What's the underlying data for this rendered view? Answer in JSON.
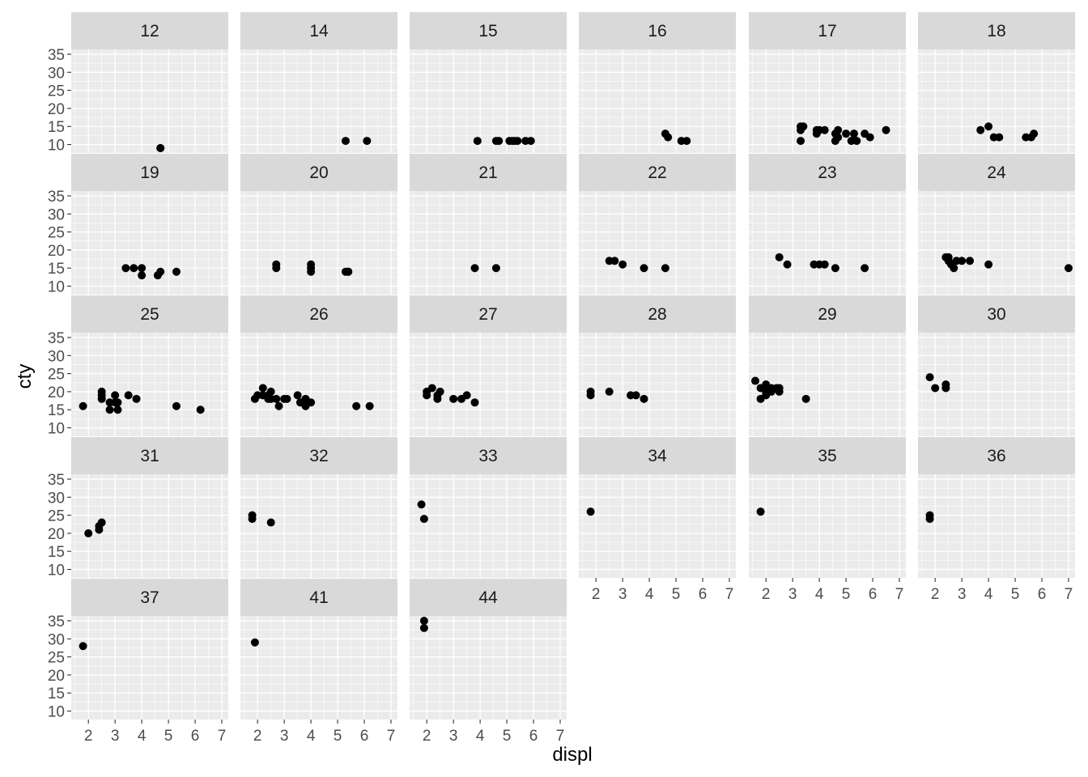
{
  "chart_data": {
    "type": "scatter",
    "facet_by": "hwy",
    "xlabel": "displ",
    "ylabel": "cty",
    "xlim": [
      1.6,
      7.0
    ],
    "ylim": [
      9,
      35
    ],
    "x_ticks": [
      2,
      3,
      4,
      5,
      6,
      7
    ],
    "y_ticks": [
      10,
      15,
      20,
      25,
      30,
      35
    ],
    "grid": true,
    "point_color": "#000000",
    "panel_background": "#ebebeb",
    "strip_background": "#d9d9d9",
    "panels": [
      {
        "label": "12",
        "points": [
          [
            4.7,
            9
          ],
          [
            4.7,
            9
          ]
        ]
      },
      {
        "label": "14",
        "points": [
          [
            5.3,
            11
          ],
          [
            6.1,
            11
          ]
        ]
      },
      {
        "label": "15",
        "points": [
          [
            3.9,
            11
          ],
          [
            4.6,
            11
          ],
          [
            4.7,
            11
          ],
          [
            5.1,
            11
          ],
          [
            5.2,
            11
          ],
          [
            5.3,
            11
          ],
          [
            5.4,
            11
          ],
          [
            5.7,
            11
          ],
          [
            5.9,
            11
          ]
        ]
      },
      {
        "label": "16",
        "points": [
          [
            4.6,
            13
          ],
          [
            4.7,
            12
          ],
          [
            5.2,
            11
          ],
          [
            5.4,
            11
          ]
        ]
      },
      {
        "label": "17",
        "points": [
          [
            3.3,
            11
          ],
          [
            3.3,
            14
          ],
          [
            3.3,
            15
          ],
          [
            3.4,
            15
          ],
          [
            3.9,
            13
          ],
          [
            3.9,
            14
          ],
          [
            4.0,
            14
          ],
          [
            4.2,
            14
          ],
          [
            4.6,
            11
          ],
          [
            4.6,
            13
          ],
          [
            4.7,
            14
          ],
          [
            4.7,
            12
          ],
          [
            5.0,
            13
          ],
          [
            5.2,
            11
          ],
          [
            5.3,
            13
          ],
          [
            5.4,
            11
          ],
          [
            5.7,
            13
          ],
          [
            5.9,
            12
          ],
          [
            6.5,
            14
          ]
        ]
      },
      {
        "label": "18",
        "points": [
          [
            3.7,
            14
          ],
          [
            4.0,
            15
          ],
          [
            4.2,
            12
          ],
          [
            4.4,
            12
          ],
          [
            5.4,
            12
          ],
          [
            5.6,
            12
          ],
          [
            5.7,
            13
          ]
        ]
      },
      {
        "label": "19",
        "points": [
          [
            3.4,
            15
          ],
          [
            3.7,
            15
          ],
          [
            4.0,
            13
          ],
          [
            4.0,
            15
          ],
          [
            4.6,
            13
          ],
          [
            4.7,
            14
          ],
          [
            5.3,
            14
          ]
        ]
      },
      {
        "label": "20",
        "points": [
          [
            2.7,
            15
          ],
          [
            2.7,
            16
          ],
          [
            4.0,
            14
          ],
          [
            4.0,
            15
          ],
          [
            4.0,
            16
          ],
          [
            5.3,
            14
          ],
          [
            5.4,
            14
          ],
          [
            5.4,
            14
          ]
        ]
      },
      {
        "label": "21",
        "points": [
          [
            3.8,
            15
          ],
          [
            4.6,
            15
          ]
        ]
      },
      {
        "label": "22",
        "points": [
          [
            2.5,
            17
          ],
          [
            2.7,
            17
          ],
          [
            3.0,
            16
          ],
          [
            3.8,
            15
          ],
          [
            4.6,
            15
          ]
        ]
      },
      {
        "label": "23",
        "points": [
          [
            2.5,
            18
          ],
          [
            2.8,
            16
          ],
          [
            3.8,
            16
          ],
          [
            4.0,
            16
          ],
          [
            4.2,
            16
          ],
          [
            4.6,
            15
          ],
          [
            5.7,
            15
          ]
        ]
      },
      {
        "label": "24",
        "points": [
          [
            2.4,
            18
          ],
          [
            2.5,
            18
          ],
          [
            2.5,
            17
          ],
          [
            2.6,
            16
          ],
          [
            2.7,
            15
          ],
          [
            2.8,
            17
          ],
          [
            3.0,
            17
          ],
          [
            3.3,
            17
          ],
          [
            4.0,
            16
          ],
          [
            7.0,
            15
          ]
        ]
      },
      {
        "label": "25",
        "points": [
          [
            1.8,
            16
          ],
          [
            2.5,
            18
          ],
          [
            2.5,
            19
          ],
          [
            2.5,
            20
          ],
          [
            2.8,
            17
          ],
          [
            2.8,
            15
          ],
          [
            3.0,
            19
          ],
          [
            3.0,
            17
          ],
          [
            3.1,
            15
          ],
          [
            3.1,
            17
          ],
          [
            3.5,
            19
          ],
          [
            3.8,
            18
          ],
          [
            5.3,
            16
          ],
          [
            6.2,
            15
          ]
        ]
      },
      {
        "label": "26",
        "points": [
          [
            1.9,
            18
          ],
          [
            2.0,
            19
          ],
          [
            2.2,
            21
          ],
          [
            2.2,
            19
          ],
          [
            2.4,
            18
          ],
          [
            2.4,
            19
          ],
          [
            2.5,
            18
          ],
          [
            2.5,
            20
          ],
          [
            2.7,
            18
          ],
          [
            2.8,
            16
          ],
          [
            3.0,
            18
          ],
          [
            3.1,
            18
          ],
          [
            3.5,
            19
          ],
          [
            3.6,
            17
          ],
          [
            3.8,
            16
          ],
          [
            3.8,
            18
          ],
          [
            3.9,
            17
          ],
          [
            4.0,
            17
          ],
          [
            5.7,
            16
          ],
          [
            6.2,
            16
          ]
        ]
      },
      {
        "label": "27",
        "points": [
          [
            2.0,
            19
          ],
          [
            2.0,
            20
          ],
          [
            2.2,
            21
          ],
          [
            2.4,
            19
          ],
          [
            2.4,
            18
          ],
          [
            2.5,
            20
          ],
          [
            3.0,
            18
          ],
          [
            3.3,
            18
          ],
          [
            3.5,
            19
          ],
          [
            3.8,
            17
          ]
        ]
      },
      {
        "label": "28",
        "points": [
          [
            1.8,
            19
          ],
          [
            1.8,
            20
          ],
          [
            2.5,
            20
          ],
          [
            3.3,
            19
          ],
          [
            3.5,
            19
          ],
          [
            3.8,
            18
          ]
        ]
      },
      {
        "label": "29",
        "points": [
          [
            1.6,
            23
          ],
          [
            1.8,
            21
          ],
          [
            1.8,
            18
          ],
          [
            2.0,
            22
          ],
          [
            2.0,
            20
          ],
          [
            2.0,
            19
          ],
          [
            2.2,
            21
          ],
          [
            2.2,
            20
          ],
          [
            2.4,
            21
          ],
          [
            2.5,
            20
          ],
          [
            2.5,
            21
          ],
          [
            3.5,
            18
          ]
        ]
      },
      {
        "label": "30",
        "points": [
          [
            1.8,
            24
          ],
          [
            2.0,
            21
          ],
          [
            2.4,
            21
          ],
          [
            2.4,
            22
          ]
        ]
      },
      {
        "label": "31",
        "points": [
          [
            2.0,
            20
          ],
          [
            2.4,
            21
          ],
          [
            2.4,
            22
          ],
          [
            2.5,
            23
          ]
        ]
      },
      {
        "label": "32",
        "points": [
          [
            1.8,
            24
          ],
          [
            1.8,
            25
          ],
          [
            2.5,
            23
          ]
        ]
      },
      {
        "label": "33",
        "points": [
          [
            1.8,
            28
          ],
          [
            1.9,
            24
          ]
        ]
      },
      {
        "label": "34",
        "points": [
          [
            1.8,
            26
          ]
        ]
      },
      {
        "label": "35",
        "points": [
          [
            1.8,
            26
          ]
        ]
      },
      {
        "label": "36",
        "points": [
          [
            1.8,
            24
          ],
          [
            1.8,
            25
          ]
        ]
      },
      {
        "label": "37",
        "points": [
          [
            1.8,
            28
          ]
        ]
      },
      {
        "label": "41",
        "points": [
          [
            1.9,
            29
          ]
        ]
      },
      {
        "label": "44",
        "points": [
          [
            1.9,
            33
          ],
          [
            1.9,
            35
          ]
        ]
      }
    ]
  }
}
